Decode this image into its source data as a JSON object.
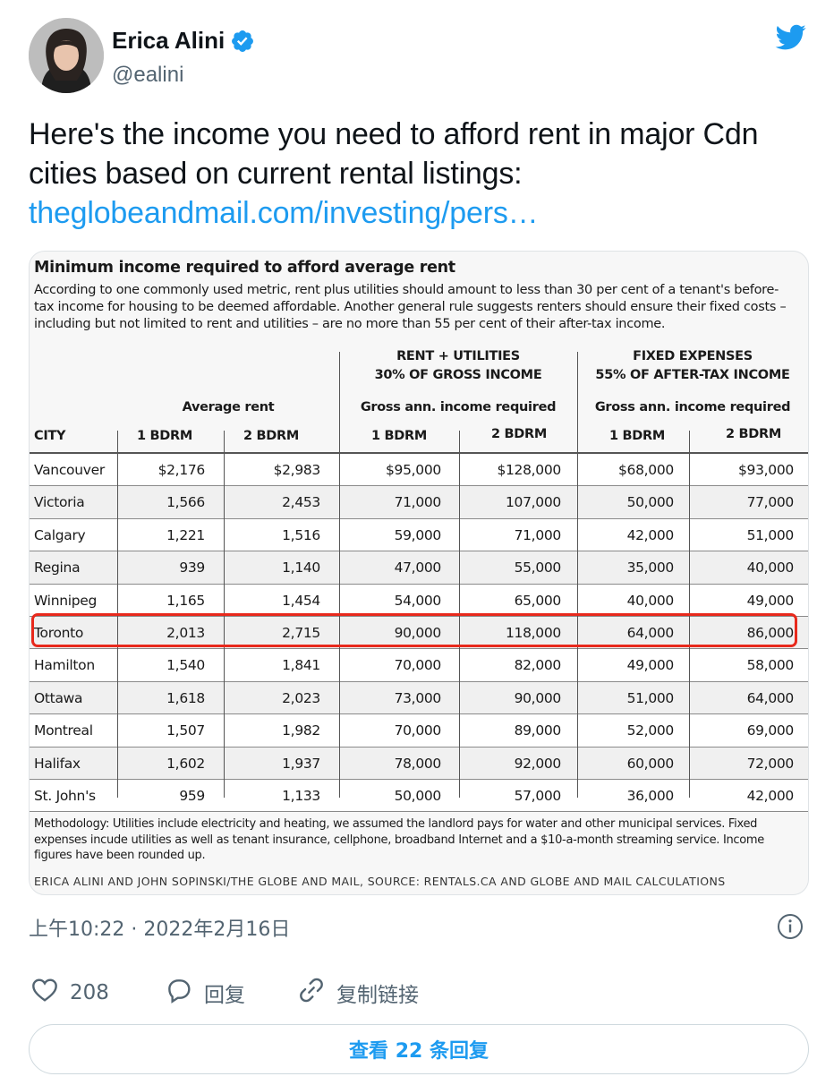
{
  "author": {
    "name": "Erica Alini",
    "handle": "@ealini",
    "verified": true
  },
  "tweet": {
    "text": "Here's the income you need to afford rent in major Cdn cities based on current rental listings:",
    "link": "theglobeandmail.com/investing/pers…"
  },
  "chart": {
    "title": "Minimum income required to afford average rent",
    "description": "According to one commonly used metric, rent plus utilities should amount to less than 30 per cent of a tenant's before-tax income for housing to be deemed affordable. Another general rule suggests renters should ensure their fixed costs – including but not limited to rent and utilities – are no more than 55 per cent of their after-tax income.",
    "group_headers": {
      "rent_util_1": "RENT + UTILITIES",
      "rent_util_2": "30% OF GROSS INCOME",
      "fixed_1": "FIXED EXPENSES",
      "fixed_2": "55% OF AFTER-TAX INCOME"
    },
    "sub_headers": {
      "average_rent": "Average rent",
      "gross_income_1": "Gross ann. income required",
      "gross_income_2": "Gross ann. income required"
    },
    "columns": [
      "CITY",
      "1 BDRM",
      "2 BDRM",
      "1 BDRM",
      "2 BDRM",
      "1 BDRM",
      "2 BDRM"
    ],
    "rows": [
      [
        "Vancouver",
        "$2,176",
        "$2,983",
        "$95,000",
        "$128,000",
        "$68,000",
        "$93,000"
      ],
      [
        "Victoria",
        "1,566",
        "2,453",
        "71,000",
        "107,000",
        "50,000",
        "77,000"
      ],
      [
        "Calgary",
        "1,221",
        "1,516",
        "59,000",
        "71,000",
        "42,000",
        "51,000"
      ],
      [
        "Regina",
        "939",
        "1,140",
        "47,000",
        "55,000",
        "35,000",
        "40,000"
      ],
      [
        "Winnipeg",
        "1,165",
        "1,454",
        "54,000",
        "65,000",
        "40,000",
        "49,000"
      ],
      [
        "Toronto",
        "2,013",
        "2,715",
        "90,000",
        "118,000",
        "64,000",
        "86,000"
      ],
      [
        "Hamilton",
        "1,540",
        "1,841",
        "70,000",
        "82,000",
        "49,000",
        "58,000"
      ],
      [
        "Ottawa",
        "1,618",
        "2,023",
        "73,000",
        "90,000",
        "51,000",
        "64,000"
      ],
      [
        "Montreal",
        "1,507",
        "1,982",
        "70,000",
        "89,000",
        "52,000",
        "69,000"
      ],
      [
        "Halifax",
        "1,602",
        "1,937",
        "78,000",
        "92,000",
        "60,000",
        "72,000"
      ],
      [
        "St. John's",
        "959",
        "1,133",
        "50,000",
        "57,000",
        "36,000",
        "42,000"
      ]
    ],
    "highlighted_row": "Toronto",
    "highlight_color": "#e8291c",
    "methodology": "Methodology: Utilities include electricity and heating, we assumed the landlord pays for water and other municipal services. Fixed expenses incude utilities as well as tenant insurance, cellphone, broadband Internet and a $10-a-month streaming service. Income figures have been rounded up.",
    "credit": "ERICA ALINI AND JOHN SOPINSKI/THE GLOBE AND MAIL, SOURCE: RENTALS.CA AND GLOBE AND MAIL CALCULATIONS"
  },
  "meta": {
    "timestamp": "上午10:22 · 2022年2月16日"
  },
  "actions": {
    "likes": "208",
    "reply_label": "回复",
    "copy_link_label": "复制链接"
  },
  "view_replies": "查看 22 条回复",
  "colors": {
    "link": "#1d9bf0",
    "secondary_text": "#536471",
    "primary_text": "#0f1419",
    "border": "#cfd9de"
  },
  "icons": [
    "twitter-bird-icon",
    "verified-badge-icon",
    "info-icon",
    "heart-icon",
    "reply-icon",
    "link-icon"
  ]
}
